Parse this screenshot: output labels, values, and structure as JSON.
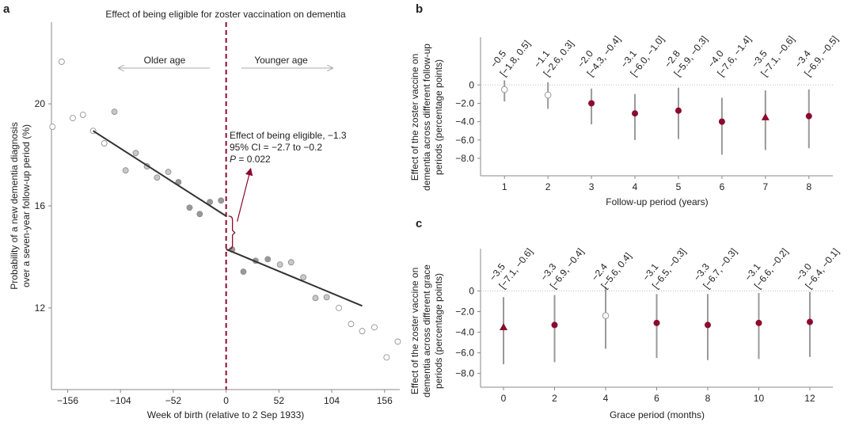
{
  "colors": {
    "accent": "#8b0a2e",
    "axis": "#888888",
    "fit_line": "#333333",
    "ci_line": "#999999"
  },
  "chart_data": [
    {
      "panel": "a",
      "type": "scatter",
      "title": "Effect of being eligible for zoster vaccination on dementia",
      "xlabel": "Week of birth (relative to 2 Sep 1933)",
      "ylabel_lines": [
        "Probability of a new dementia diagnosis",
        "over a seven-year follow-up period (%)"
      ],
      "xlim": [
        -172,
        171
      ],
      "ylim": [
        8.8,
        23.2
      ],
      "xticks": [
        -156,
        -104,
        -52,
        0,
        52,
        104,
        156
      ],
      "yticks": [
        12,
        16,
        20
      ],
      "cutoff_x": 0,
      "direction_labels": {
        "left": "Older age",
        "right": "Younger age"
      },
      "annotation": {
        "line1": "Effect of being eligible, −1.3",
        "line2": "95% CI = −2.7 to −0.2",
        "p_label": "P",
        "p_value": " = 0.022"
      },
      "points": [
        {
          "x": -171,
          "y": 19.1
        },
        {
          "x": -162,
          "y": 21.65
        },
        {
          "x": -151,
          "y": 19.44
        },
        {
          "x": -141,
          "y": 19.57
        },
        {
          "x": -131,
          "y": 18.94
        },
        {
          "x": -120,
          "y": 18.45
        },
        {
          "x": -110,
          "y": 19.69
        },
        {
          "x": -99,
          "y": 17.39
        },
        {
          "x": -89,
          "y": 18.07
        },
        {
          "x": -78,
          "y": 17.55
        },
        {
          "x": -68,
          "y": 17.11
        },
        {
          "x": -57,
          "y": 17.33
        },
        {
          "x": -47,
          "y": 16.93
        },
        {
          "x": -36,
          "y": 15.93
        },
        {
          "x": -26,
          "y": 15.68
        },
        {
          "x": -16,
          "y": 16.15
        },
        {
          "x": -5,
          "y": 16.21
        },
        {
          "x": 6,
          "y": 14.29
        },
        {
          "x": 17,
          "y": 13.42
        },
        {
          "x": 29,
          "y": 13.85
        },
        {
          "x": 41,
          "y": 13.91
        },
        {
          "x": 53,
          "y": 13.7
        },
        {
          "x": 64,
          "y": 13.79
        },
        {
          "x": 76,
          "y": 13.2
        },
        {
          "x": 88,
          "y": 12.39
        },
        {
          "x": 99,
          "y": 12.42
        },
        {
          "x": 111,
          "y": 12.0
        },
        {
          "x": 123,
          "y": 11.37
        },
        {
          "x": 134,
          "y": 11.09
        },
        {
          "x": 146,
          "y": 11.24
        },
        {
          "x": 158,
          "y": 10.06
        },
        {
          "x": 169,
          "y": 10.68
        }
      ],
      "fit_lines": [
        {
          "x": [
            -131,
            0
          ],
          "y": [
            18.94,
            15.6
          ]
        },
        {
          "x": [
            0,
            134
          ],
          "y": [
            14.3,
            12.08
          ]
        }
      ]
    },
    {
      "panel": "b",
      "type": "scatter",
      "xlabel": "Follow-up period (years)",
      "ylabel_lines": [
        "Effect of the zoster vaccine on",
        "dementia across different follow-up",
        "periods (percentage points)"
      ],
      "xlim": [
        0.45,
        8.55
      ],
      "ylim": [
        -9.9,
        5.2
      ],
      "xticks": [
        1,
        2,
        3,
        4,
        5,
        6,
        7,
        8
      ],
      "yticks": [
        {
          "v": 0,
          "label": "0"
        },
        {
          "v": -2,
          "label": "−2.0"
        },
        {
          "v": -4,
          "label": "−4.0"
        },
        {
          "v": -6,
          "label": "−6.0"
        },
        {
          "v": -8,
          "label": "−8.0"
        }
      ],
      "points": [
        {
          "x": 1,
          "est": -0.5,
          "lo": -1.8,
          "hi": 0.5,
          "marker": "open-circle",
          "est_label": "−0.5",
          "ci_label": "[−1.8, 0.5]"
        },
        {
          "x": 2,
          "est": -1.1,
          "lo": -2.6,
          "hi": 0.3,
          "marker": "open-circle",
          "est_label": "−1.1",
          "ci_label": "[−2.6, 0.3]"
        },
        {
          "x": 3,
          "est": -2.0,
          "lo": -4.3,
          "hi": -0.4,
          "marker": "filled-circle",
          "est_label": "−2.0",
          "ci_label": "[−4.3, −0.4]"
        },
        {
          "x": 4,
          "est": -3.1,
          "lo": -6.0,
          "hi": -1.0,
          "marker": "filled-circle",
          "est_label": "−3.1",
          "ci_label": "[−6.0, −1.0]"
        },
        {
          "x": 5,
          "est": -2.8,
          "lo": -5.9,
          "hi": -0.3,
          "marker": "filled-circle",
          "est_label": "−2.8",
          "ci_label": "[−5.9, −0.3]"
        },
        {
          "x": 6,
          "est": -4.0,
          "lo": -7.6,
          "hi": -1.4,
          "marker": "filled-circle",
          "est_label": "−4.0",
          "ci_label": "[−7.6, −1.4]"
        },
        {
          "x": 7,
          "est": -3.5,
          "lo": -7.1,
          "hi": -0.6,
          "marker": "triangle",
          "est_label": "−3.5",
          "ci_label": "[−7.1, −0.6]"
        },
        {
          "x": 8,
          "est": -3.4,
          "lo": -6.9,
          "hi": -0.5,
          "marker": "filled-circle",
          "est_label": "−3.4",
          "ci_label": "[−6.9, −0.5]"
        }
      ]
    },
    {
      "panel": "c",
      "type": "scatter",
      "xlabel": "Grace period (months)",
      "ylabel_lines": [
        "Effect of the zoster vaccine on",
        "dementia across different grace",
        "periods (percentage points)"
      ],
      "xlim": [
        -0.9,
        12.9
      ],
      "ylim": [
        -9.33,
        4.1
      ],
      "xticks": [
        0,
        2,
        4,
        6,
        8,
        10,
        12
      ],
      "yticks": [
        {
          "v": 0,
          "label": "0"
        },
        {
          "v": -2,
          "label": "−2.0"
        },
        {
          "v": -4,
          "label": "−4.0"
        },
        {
          "v": -6,
          "label": "−6.0"
        },
        {
          "v": -8,
          "label": "−8.0"
        }
      ],
      "points": [
        {
          "x": 0,
          "est": -3.5,
          "lo": -7.1,
          "hi": -0.6,
          "marker": "triangle",
          "est_label": "−3.5",
          "ci_label": "[−7.1, −0.6]"
        },
        {
          "x": 2,
          "est": -3.3,
          "lo": -6.9,
          "hi": -0.4,
          "marker": "filled-circle",
          "est_label": "−3.3",
          "ci_label": "[−6.9, −0.4]"
        },
        {
          "x": 4,
          "est": -2.4,
          "lo": -5.6,
          "hi": 0.4,
          "marker": "open-circle",
          "est_label": "−2.4",
          "ci_label": "[−5.6, 0.4]"
        },
        {
          "x": 6,
          "est": -3.1,
          "lo": -6.5,
          "hi": -0.3,
          "marker": "filled-circle",
          "est_label": "−3.1",
          "ci_label": "[−6.5, −0.3]"
        },
        {
          "x": 8,
          "est": -3.3,
          "lo": -6.7,
          "hi": -0.3,
          "marker": "filled-circle",
          "est_label": "−3.3",
          "ci_label": "[−6.7, −0.3]"
        },
        {
          "x": 10,
          "est": -3.1,
          "lo": -6.6,
          "hi": -0.2,
          "marker": "filled-circle",
          "est_label": "−3.1",
          "ci_label": "[−6.6, −0.2]"
        },
        {
          "x": 12,
          "est": -3.0,
          "lo": -6.4,
          "hi": -0.1,
          "marker": "filled-circle",
          "est_label": "−3.0",
          "ci_label": "[−6.4, −0.1]"
        }
      ]
    }
  ]
}
